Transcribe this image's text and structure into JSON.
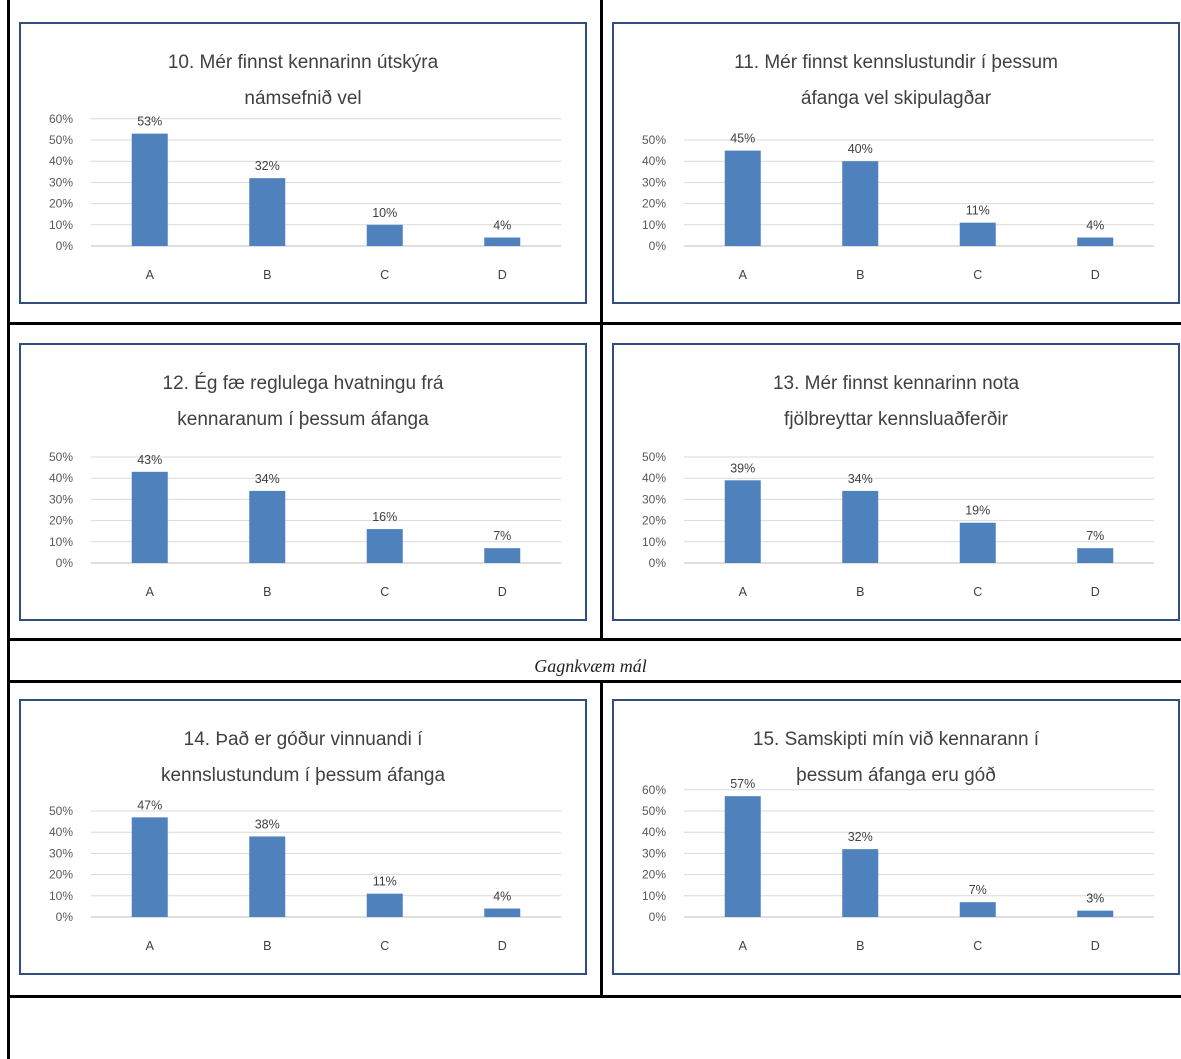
{
  "section_caption": "Gagnkvæm mál",
  "chart_data": [
    {
      "type": "bar",
      "title": [
        "10. Mér finnst kennarinn útskýra",
        "námsefnið  vel"
      ],
      "categories": [
        "A",
        "B",
        "C",
        "D"
      ],
      "values": [
        53,
        32,
        10,
        4
      ],
      "value_labels": [
        "53%",
        "32%",
        "10%",
        "4%"
      ],
      "ylim": [
        0,
        60
      ],
      "yticks": [
        "0%",
        "10%",
        "20%",
        "30%",
        "40%",
        "50%",
        "60%"
      ],
      "grid": true,
      "bar_color": "#4f81bd"
    },
    {
      "type": "bar",
      "title": [
        "11. Mér finnst kennslustundir í þessum",
        "áfanga vel skipulagðar"
      ],
      "categories": [
        "A",
        "B",
        "C",
        "D"
      ],
      "values": [
        45,
        40,
        11,
        4
      ],
      "value_labels": [
        "45%",
        "40%",
        "11%",
        "4%"
      ],
      "ylim": [
        0,
        50
      ],
      "yticks": [
        "0%",
        "10%",
        "20%",
        "30%",
        "40%",
        "50%"
      ],
      "grid": true,
      "bar_color": "#4f81bd"
    },
    {
      "type": "bar",
      "title": [
        "12. Ég fæ reglulega hvatningu frá",
        "kennaranum í þessum áfanga"
      ],
      "categories": [
        "A",
        "B",
        "C",
        "D"
      ],
      "values": [
        43,
        34,
        16,
        7
      ],
      "value_labels": [
        "43%",
        "34%",
        "16%",
        "7%"
      ],
      "ylim": [
        0,
        50
      ],
      "yticks": [
        "0%",
        "10%",
        "20%",
        "30%",
        "40%",
        "50%"
      ],
      "grid": true,
      "bar_color": "#4f81bd"
    },
    {
      "type": "bar",
      "title": [
        "13. Mér finnst kennarinn nota",
        "fjölbreyttar kennsluaðferðir"
      ],
      "categories": [
        "A",
        "B",
        "C",
        "D"
      ],
      "values": [
        39,
        34,
        19,
        7
      ],
      "value_labels": [
        "39%",
        "34%",
        "19%",
        "7%"
      ],
      "ylim": [
        0,
        50
      ],
      "yticks": [
        "0%",
        "10%",
        "20%",
        "30%",
        "40%",
        "50%"
      ],
      "grid": true,
      "bar_color": "#4f81bd"
    },
    {
      "type": "bar",
      "title": [
        "14. Það er góður vinnuandi í",
        "kennslustundum í þessum áfanga"
      ],
      "categories": [
        "A",
        "B",
        "C",
        "D"
      ],
      "values": [
        47,
        38,
        11,
        4
      ],
      "value_labels": [
        "47%",
        "38%",
        "11%",
        "4%"
      ],
      "ylim": [
        0,
        50
      ],
      "yticks": [
        "0%",
        "10%",
        "20%",
        "30%",
        "40%",
        "50%"
      ],
      "grid": true,
      "bar_color": "#4f81bd"
    },
    {
      "type": "bar",
      "title": [
        "15. Samskipti mín við kennarann í",
        "þessum áfanga eru góð"
      ],
      "categories": [
        "A",
        "B",
        "C",
        "D"
      ],
      "values": [
        57,
        32,
        7,
        3
      ],
      "value_labels": [
        "57%",
        "32%",
        "7%",
        "3%"
      ],
      "ylim": [
        0,
        60
      ],
      "yticks": [
        "0%",
        "10%",
        "20%",
        "30%",
        "40%",
        "50%",
        "60%"
      ],
      "grid": true,
      "bar_color": "#4f81bd"
    }
  ]
}
